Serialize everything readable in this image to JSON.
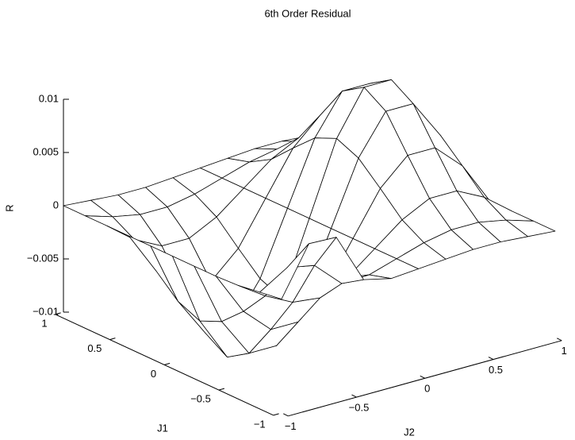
{
  "chart_data": {
    "type": "surface",
    "title": "6th Order Residual",
    "xlabel": "J2",
    "ylabel": "J1",
    "zlabel": "R",
    "xlim": [
      -1,
      1
    ],
    "ylim": [
      -1,
      1
    ],
    "zlim": [
      -0.01,
      0.01
    ],
    "xticks": [
      {
        "value": -1,
        "label": "−1"
      },
      {
        "value": -0.5,
        "label": "−0.5"
      },
      0,
      0.5,
      1
    ],
    "yticks": [
      {
        "value": -1,
        "label": "−1"
      },
      {
        "value": -0.5,
        "label": "−0.5"
      },
      0,
      0.5,
      1
    ],
    "zticks": [
      {
        "value": -0.01,
        "label": "−0.01"
      },
      {
        "value": -0.005,
        "label": "−0.005"
      },
      0,
      0.005,
      0.01
    ],
    "x": [
      -1,
      -0.8,
      -0.6,
      -0.4,
      -0.2,
      0,
      0.2,
      0.4,
      0.6,
      0.8,
      1
    ],
    "y": [
      -1,
      -0.8,
      -0.6,
      -0.4,
      -0.2,
      0,
      0.2,
      0.4,
      0.6,
      0.8,
      1
    ],
    "z": [
      [
        0.0007,
        0.0052,
        0.0051,
        0.0004,
        -0.0002,
        0,
        0.0002,
        0.0004,
        0.0004,
        0.0002,
        0
      ],
      [
        0.0004,
        0.002,
        0.0015,
        -0.0009,
        -0.0008,
        0,
        0.0008,
        0.0013,
        0.0013,
        0.0008,
        0
      ],
      [
        0.0001,
        -0.0016,
        -0.0029,
        -0.0032,
        -0.002,
        0,
        0.002,
        0.0033,
        0.0033,
        0.002,
        0
      ],
      [
        0,
        -0.004,
        -0.0064,
        -0.0064,
        -0.004,
        0,
        0.004,
        0.0064,
        0.0064,
        0.004,
        0
      ],
      [
        0,
        -0.0059,
        -0.0096,
        -0.0096,
        -0.0059,
        0,
        0.0059,
        0.0096,
        0.0096,
        0.0059,
        0
      ],
      [
        0,
        -0.0068,
        -0.0109,
        -0.0109,
        -0.0068,
        0,
        0.0068,
        0.0109,
        0.0109,
        0.0068,
        0
      ],
      [
        0,
        -0.0059,
        -0.0096,
        -0.0096,
        -0.0059,
        0,
        0.0059,
        0.0096,
        0.0096,
        0.0059,
        0
      ],
      [
        0,
        -0.004,
        -0.0064,
        -0.0064,
        -0.004,
        0,
        0.004,
        0.0064,
        0.0064,
        0.004,
        0
      ],
      [
        0,
        -0.002,
        -0.0033,
        -0.0033,
        -0.002,
        0,
        0.002,
        0.0033,
        0.0033,
        0.002,
        0
      ],
      [
        0,
        -0.0008,
        -0.0013,
        -0.0013,
        -0.0008,
        0,
        0.0008,
        0.0013,
        0.0013,
        0.0008,
        0
      ],
      [
        0,
        -0.0002,
        -0.0004,
        -0.0004,
        -0.0002,
        0,
        0.0002,
        0.0004,
        0.0004,
        0.0002,
        0
      ]
    ]
  }
}
